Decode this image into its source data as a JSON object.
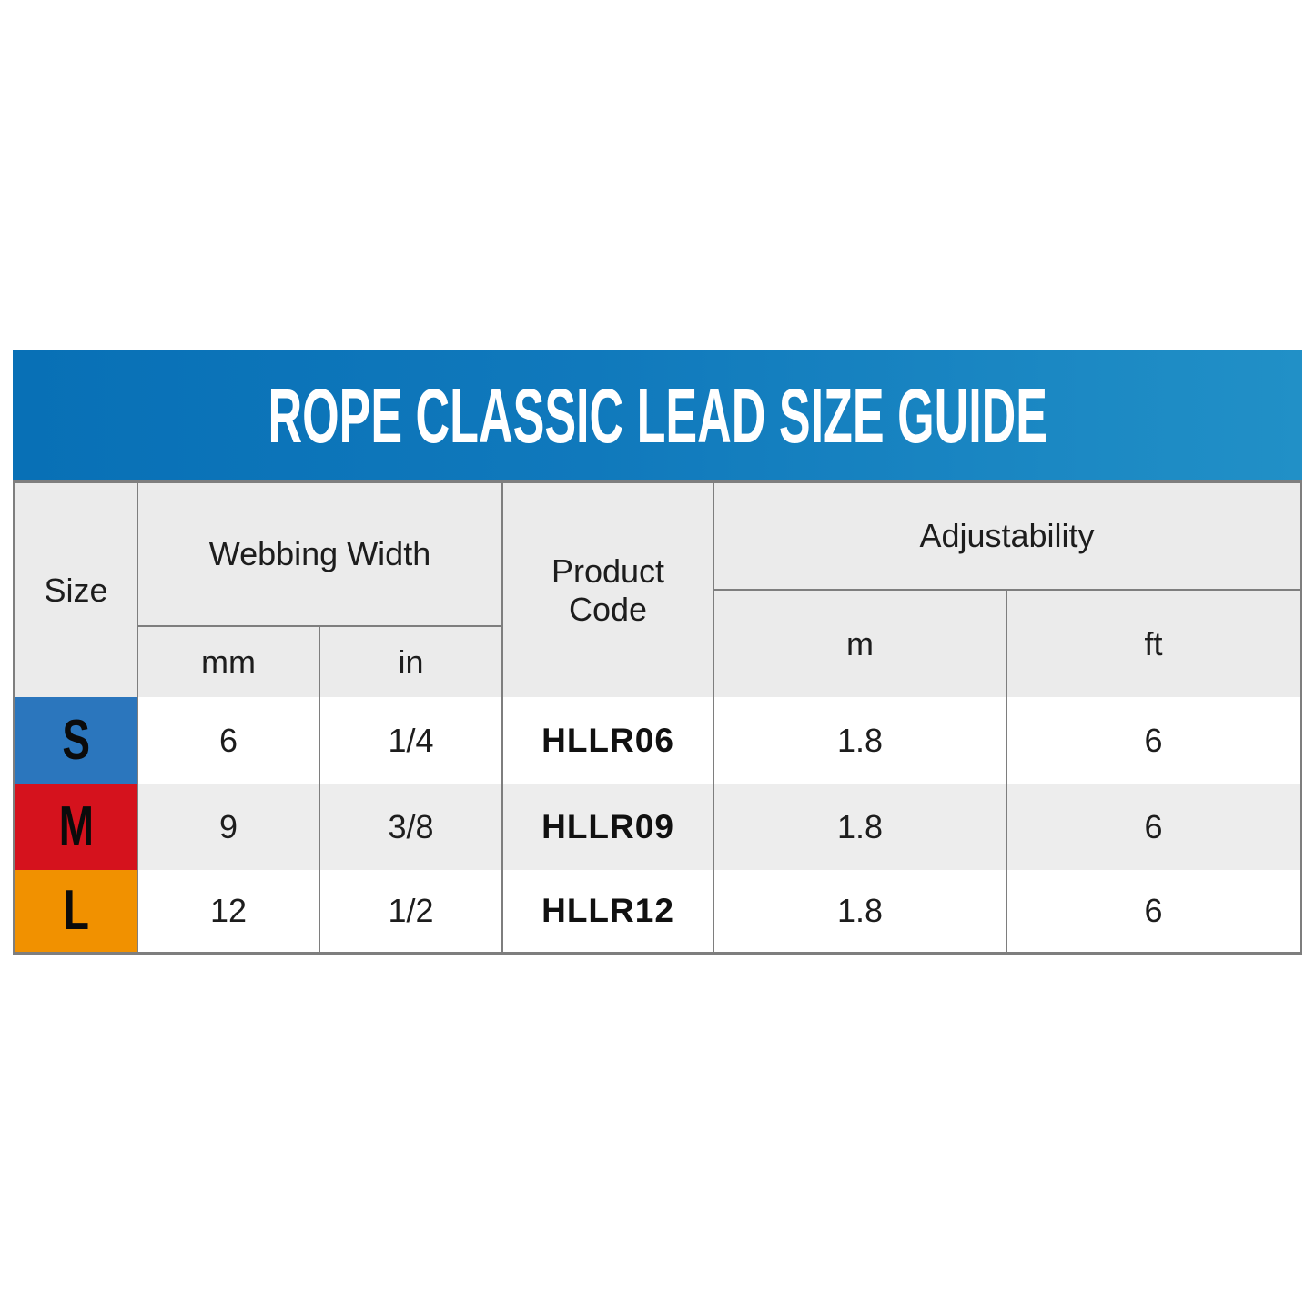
{
  "title": "ROPE CLASSIC LEAD SIZE GUIDE",
  "colors": {
    "title_bar_gradient_left": "#0870B6",
    "title_bar_gradient_right": "#2190C7",
    "title_text": "#FFFFFF",
    "header_cell_bg": "#EBEBEB",
    "alt_row_bg": "#EDEDED",
    "border": "#7E7E7E",
    "size_s_swatch": "#2B76BD",
    "size_m_swatch": "#D5121D",
    "size_l_swatch": "#F19100"
  },
  "table": {
    "headers": {
      "size": "Size",
      "webbing_width": "Webbing Width",
      "product_code": "Product Code",
      "adjustability": "Adjustability",
      "mm": "mm",
      "in": "in",
      "m": "m",
      "ft": "ft"
    },
    "rows": [
      {
        "size": "S",
        "swatch_color": "#2B76BD",
        "mm": "6",
        "in": "1/4",
        "code": "HLLR06",
        "m": "1.8",
        "ft": "6"
      },
      {
        "size": "M",
        "swatch_color": "#D5121D",
        "mm": "9",
        "in": "3/8",
        "code": "HLLR09",
        "m": "1.8",
        "ft": "6"
      },
      {
        "size": "L",
        "swatch_color": "#F19100",
        "mm": "12",
        "in": "1/2",
        "code": "HLLR12",
        "m": "1.8",
        "ft": "6"
      }
    ]
  },
  "chart_data": {
    "type": "table",
    "title": "ROPE CLASSIC LEAD SIZE GUIDE",
    "column_groups": [
      {
        "label": "Size",
        "columns": [
          "Size"
        ]
      },
      {
        "label": "Webbing Width",
        "columns": [
          "mm",
          "in"
        ]
      },
      {
        "label": "Product Code",
        "columns": [
          "Product Code"
        ]
      },
      {
        "label": "Adjustability",
        "columns": [
          "m",
          "ft"
        ]
      }
    ],
    "columns": [
      "Size",
      "Webbing Width (mm)",
      "Webbing Width (in)",
      "Product Code",
      "Adjustability (m)",
      "Adjustability (ft)"
    ],
    "rows": [
      [
        "S",
        "6",
        "1/4",
        "HLLR06",
        "1.8",
        "6"
      ],
      [
        "M",
        "9",
        "3/8",
        "HLLR09",
        "1.8",
        "6"
      ],
      [
        "L",
        "12",
        "1/2",
        "HLLR12",
        "1.8",
        "6"
      ]
    ]
  }
}
